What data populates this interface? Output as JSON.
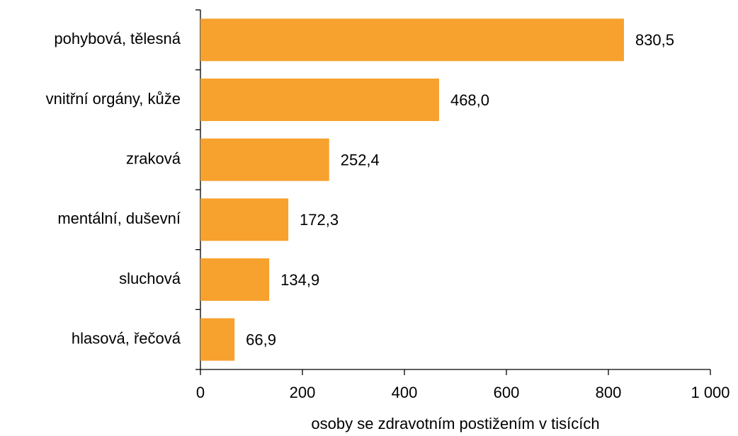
{
  "chart_data": {
    "type": "bar",
    "orientation": "horizontal",
    "categories": [
      "pohybová, tělesná",
      "vnitřní orgány, kůže",
      "zraková",
      "mentální, duševní",
      "sluchová",
      "hlasová, řečová"
    ],
    "values": [
      830.5,
      468.0,
      252.4,
      172.3,
      134.9,
      66.9
    ],
    "value_labels": [
      "830,5",
      "468,0",
      "252,4",
      "172,3",
      "134,9",
      "66,9"
    ],
    "color": "#f7a12e",
    "xlabel": "osoby se zdravotním postižením v tisících",
    "xlim": [
      0,
      1000
    ],
    "xticks": [
      0,
      200,
      400,
      600,
      800,
      {
        "value": 1000,
        "label": "1 000"
      }
    ],
    "grid": false
  }
}
